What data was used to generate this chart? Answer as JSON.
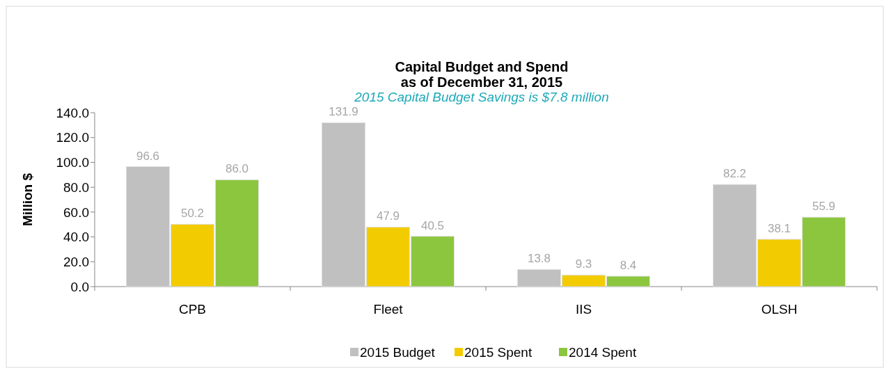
{
  "chart_data": {
    "type": "bar",
    "title": "Capital Budget and Spend\nas of December 31, 2015",
    "subtitle": "2015 Capital Budget Savings is $7.8 million",
    "ylabel": "Million $",
    "categories": [
      "CPB",
      "Fleet",
      "IIS",
      "OLSH"
    ],
    "series": [
      {
        "name": "2015 Budget",
        "color": "#c0c0c0",
        "values": [
          96.6,
          131.9,
          13.8,
          82.2
        ]
      },
      {
        "name": "2015 Spent",
        "color": "#f2cc00",
        "values": [
          50.2,
          47.9,
          9.3,
          38.1
        ]
      },
      {
        "name": "2014 Spent",
        "color": "#8cc63f",
        "values": [
          86.0,
          40.5,
          8.4,
          55.9
        ]
      }
    ],
    "ylim": [
      0,
      140
    ],
    "yticks": [
      {
        "value": 0,
        "label": "0.0"
      },
      {
        "value": 20,
        "label": "20.0"
      },
      {
        "value": 40,
        "label": "40.0"
      },
      {
        "value": 60,
        "label": "60.0"
      },
      {
        "value": 80,
        "label": "80.0"
      },
      {
        "value": 100,
        "label": "100.0"
      },
      {
        "value": 120,
        "label": "120.0"
      },
      {
        "value": 140,
        "label": "140.0"
      }
    ],
    "value_labels": [
      [
        "96.6",
        "131.9",
        "13.8",
        "82.2"
      ],
      [
        "50.2",
        "47.9",
        "9.3",
        "38.1"
      ],
      [
        "86.0",
        "40.5",
        "8.4",
        "55.9"
      ]
    ],
    "grid": false,
    "legend": "bottom"
  }
}
